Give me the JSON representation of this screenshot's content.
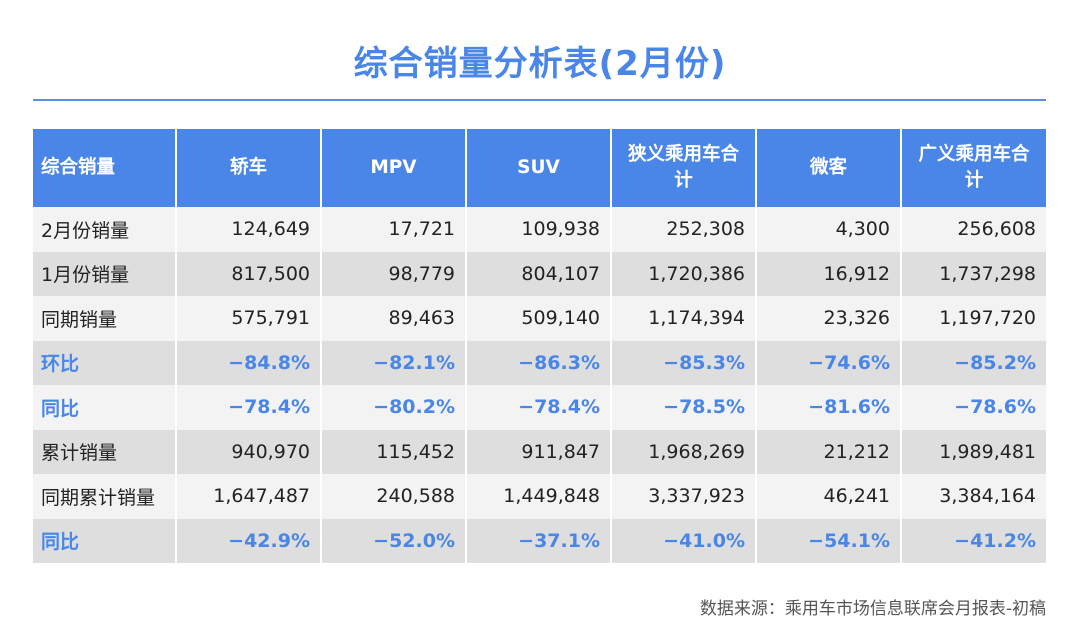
{
  "title": "综合销量分析表(2月份)",
  "source": "数据来源：乘用车市场信息联席会月报表-初稿",
  "chart_data": {
    "type": "table",
    "title": "综合销量分析表(2月份)",
    "columns": [
      "综合销量",
      "轿车",
      "MPV",
      "SUV",
      "狭义乘用车合计",
      "微客",
      "广义乘用车合计"
    ],
    "rows": [
      {
        "label": "2月份销量",
        "values": [
          "124,649",
          "17,721",
          "109,938",
          "252,308",
          "4,300",
          "256,608"
        ],
        "kind": "number"
      },
      {
        "label": "1月份销量",
        "values": [
          "817,500",
          "98,779",
          "804,107",
          "1,720,386",
          "16,912",
          "1,737,298"
        ],
        "kind": "number"
      },
      {
        "label": "同期销量",
        "values": [
          "575,791",
          "89,463",
          "509,140",
          "1,174,394",
          "23,326",
          "1,197,720"
        ],
        "kind": "number"
      },
      {
        "label": "环比",
        "values": [
          "−84.8%",
          "−82.1%",
          "−86.3%",
          "−85.3%",
          "−74.6%",
          "−85.2%"
        ],
        "kind": "percent"
      },
      {
        "label": "同比",
        "values": [
          "−78.4%",
          "−80.2%",
          "−78.4%",
          "−78.5%",
          "−81.6%",
          "−78.6%"
        ],
        "kind": "percent"
      },
      {
        "label": "累计销量",
        "values": [
          "940,970",
          "115,452",
          "911,847",
          "1,968,269",
          "21,212",
          "1,989,481"
        ],
        "kind": "number"
      },
      {
        "label": "同期累计销量",
        "values": [
          "1,647,487",
          "240,588",
          "1,449,848",
          "3,337,923",
          "46,241",
          "3,384,164"
        ],
        "kind": "number"
      },
      {
        "label": "同比",
        "values": [
          "−42.9%",
          "−52.0%",
          "−37.1%",
          "−41.0%",
          "−54.1%",
          "−41.2%"
        ],
        "kind": "percent"
      }
    ]
  },
  "colors": {
    "accent": "#4a86e8",
    "header_bg": "#4a86e8",
    "row_light": "#f3f3f3",
    "row_dark": "#dedede",
    "text": "#222222"
  }
}
